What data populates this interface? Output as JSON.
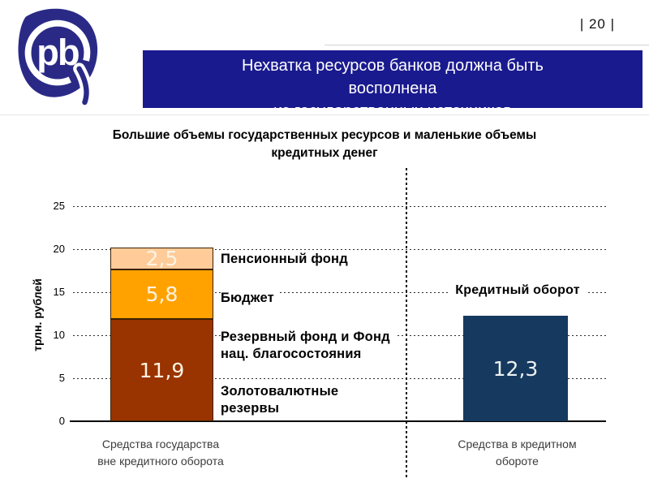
{
  "page": {
    "number_label": "| 20 |",
    "background": "#FFFFFF"
  },
  "logo": {
    "letters": "pb",
    "color": "#2A2A86"
  },
  "banner": {
    "bg_color": "#1A1A8F",
    "text_color": "#FFFFFF",
    "lines": [
      "Нехватка ресурсов банков должна быть",
      "восполнена",
      "из государственных источников"
    ]
  },
  "chart_data": {
    "type": "bar",
    "stacked": true,
    "title_lines": [
      "Большие объемы государственных ресурсов и маленькие объемы",
      "кредитных денег"
    ],
    "ylabel": "трлн. рублей",
    "ylim": [
      0,
      25
    ],
    "yticks": [
      "25",
      "20",
      "15",
      "10",
      "5",
      "0"
    ],
    "grid": "dotted-horizontal",
    "categories": [
      "Средства государства\nвне кредитного оборота",
      "Средства в кредитном\nобороте"
    ],
    "bars": {
      "left": {
        "segments": [
          {
            "value": 11.9,
            "label": "11,9",
            "color": "#993300"
          },
          {
            "value": 5.8,
            "label": "5,8",
            "color": "#FFA200"
          },
          {
            "value": 2.5,
            "label": "2,5",
            "color": "#FFCC99"
          }
        ]
      },
      "right": {
        "value": 12.3,
        "label": "12,3",
        "color": "#16395F",
        "title": "Кредитный оборот"
      }
    },
    "annotations": [
      "Пенсионный фонд",
      "Бюджет",
      "Резервный фонд и Фонд\nнац. благосостояния",
      "Золотовалютные\nрезервы"
    ]
  }
}
